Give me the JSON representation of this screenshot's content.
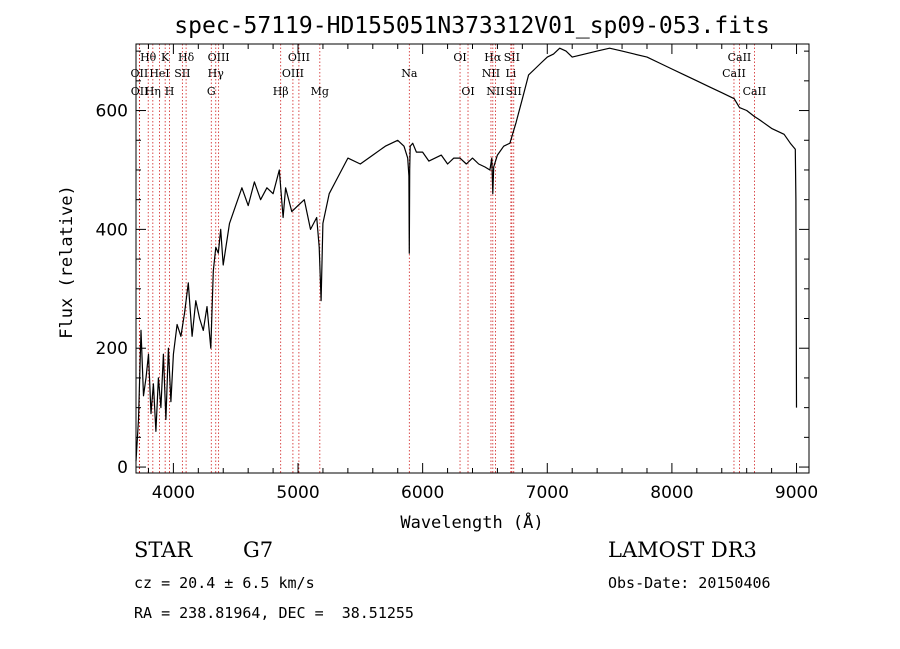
{
  "chart_data": {
    "type": "line",
    "title": "spec-57119-HD155051N373312V01_sp09-053.fits",
    "xlabel": "Wavelength (Å)",
    "ylabel": "Flux (relative)",
    "xlim": [
      3700,
      9100
    ],
    "ylim": [
      -10,
      712
    ],
    "x_ticks": [
      4000,
      5000,
      6000,
      7000,
      8000,
      9000
    ],
    "y_ticks": [
      0,
      200,
      400,
      600
    ],
    "series": [
      {
        "name": "flux",
        "x": [
          3700,
          3720,
          3740,
          3760,
          3780,
          3800,
          3820,
          3840,
          3860,
          3880,
          3900,
          3920,
          3940,
          3960,
          3980,
          4000,
          4030,
          4060,
          4090,
          4120,
          4150,
          4180,
          4210,
          4240,
          4270,
          4300,
          4320,
          4340,
          4360,
          4380,
          4400,
          4450,
          4500,
          4550,
          4600,
          4650,
          4700,
          4750,
          4800,
          4850,
          4880,
          4900,
          4950,
          5000,
          5050,
          5100,
          5150,
          5170,
          5185,
          5200,
          5250,
          5300,
          5400,
          5500,
          5600,
          5700,
          5800,
          5850,
          5880,
          5890,
          5893,
          5896,
          5900,
          5920,
          5950,
          6000,
          6050,
          6100,
          6150,
          6200,
          6250,
          6300,
          6350,
          6400,
          6450,
          6500,
          6540,
          6555,
          6563,
          6570,
          6600,
          6650,
          6700,
          6750,
          6800,
          6850,
          6900,
          6950,
          7000,
          7050,
          7100,
          7150,
          7200,
          7300,
          7400,
          7500,
          7600,
          7700,
          7800,
          7900,
          8000,
          8100,
          8200,
          8300,
          8400,
          8500,
          8542,
          8600,
          8662,
          8700,
          8800,
          8900,
          8950,
          8970,
          8990,
          8995,
          9000
        ],
        "y": [
          10,
          80,
          230,
          120,
          150,
          190,
          90,
          140,
          60,
          150,
          100,
          190,
          80,
          200,
          110,
          190,
          240,
          220,
          260,
          310,
          220,
          280,
          250,
          230,
          270,
          200,
          330,
          370,
          360,
          400,
          340,
          410,
          440,
          470,
          440,
          480,
          450,
          470,
          460,
          500,
          420,
          470,
          430,
          440,
          450,
          400,
          420,
          370,
          280,
          410,
          460,
          480,
          520,
          510,
          525,
          540,
          550,
          540,
          520,
          490,
          360,
          500,
          540,
          545,
          530,
          530,
          515,
          520,
          525,
          510,
          520,
          520,
          510,
          520,
          510,
          505,
          500,
          520,
          460,
          505,
          525,
          540,
          545,
          580,
          620,
          660,
          670,
          680,
          690,
          695,
          705,
          700,
          690,
          695,
          700,
          705,
          700,
          695,
          690,
          680,
          670,
          660,
          650,
          640,
          630,
          620,
          605,
          600,
          590,
          585,
          570,
          560,
          545,
          540,
          535,
          450,
          100
        ]
      }
    ],
    "spectral_lines": [
      {
        "label": "Hθ",
        "wavelength": 3798,
        "row": 1
      },
      {
        "label": "OII",
        "wavelength": 3727,
        "row": 2
      },
      {
        "label": "OII",
        "wavelength": 3729,
        "row": 3
      },
      {
        "label": "HeI",
        "wavelength": 3889,
        "row": 2
      },
      {
        "label": "Hη",
        "wavelength": 3835,
        "row": 3
      },
      {
        "label": "K",
        "wavelength": 3934,
        "row": 1
      },
      {
        "label": "H",
        "wavelength": 3969,
        "row": 3
      },
      {
        "label": "Hδ",
        "wavelength": 4102,
        "row": 1
      },
      {
        "label": "SII",
        "wavelength": 4072,
        "row": 2
      },
      {
        "label": "OIII",
        "wavelength": 4363,
        "row": 1
      },
      {
        "label": "Hγ",
        "wavelength": 4340,
        "row": 2
      },
      {
        "label": "G",
        "wavelength": 4304,
        "row": 3
      },
      {
        "label": "Hβ",
        "wavelength": 4861,
        "row": 3
      },
      {
        "label": "OIII",
        "wavelength": 5007,
        "row": 1
      },
      {
        "label": "OIII",
        "wavelength": 4959,
        "row": 2
      },
      {
        "label": "Mg",
        "wavelength": 5175,
        "row": 3
      },
      {
        "label": "Na",
        "wavelength": 5893,
        "row": 2
      },
      {
        "label": "OI",
        "wavelength": 6300,
        "row": 1
      },
      {
        "label": "OI",
        "wavelength": 6364,
        "row": 3
      },
      {
        "label": "Hα",
        "wavelength": 6563,
        "row": 1
      },
      {
        "label": "NII",
        "wavelength": 6548,
        "row": 2
      },
      {
        "label": "NII",
        "wavelength": 6584,
        "row": 3
      },
      {
        "label": "SII",
        "wavelength": 6716,
        "row": 1
      },
      {
        "label": "Li",
        "wavelength": 6708,
        "row": 2
      },
      {
        "label": "SII",
        "wavelength": 6731,
        "row": 3
      },
      {
        "label": "CaII",
        "wavelength": 8542,
        "row": 1
      },
      {
        "label": "CaII",
        "wavelength": 8498,
        "row": 2
      },
      {
        "label": "CaII",
        "wavelength": 8662,
        "row": 3
      }
    ]
  },
  "info": {
    "object_type": "STAR",
    "subclass": "G7",
    "survey": "LAMOST DR3",
    "redshift": "cz = 20.4 ± 6.5 km/s",
    "obs_date": "Obs-Date: 20150406",
    "coordinates": "RA = 238.81964, DEC =  38.51255"
  },
  "colors": {
    "line_marker": "#d02020",
    "spectrum": "#000000",
    "axis": "#000000"
  }
}
